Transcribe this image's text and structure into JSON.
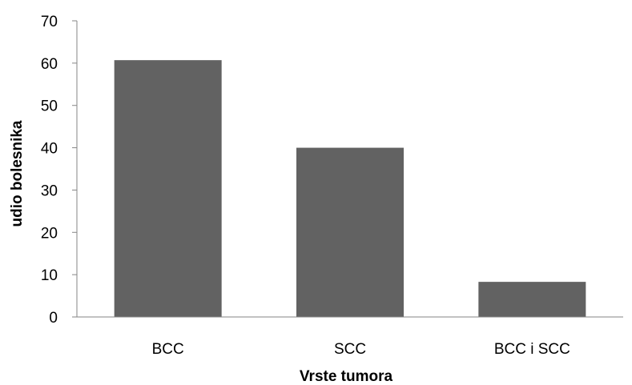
{
  "chart_data": {
    "type": "bar",
    "title": "",
    "xlabel": "Vrste tumora",
    "ylabel": "udio bolesnika",
    "categories": [
      "BCC",
      "SCC",
      "BCC i SCC"
    ],
    "values": [
      60.7,
      40,
      8.3
    ],
    "ylim": [
      0,
      70
    ],
    "yticks": [
      0,
      10,
      20,
      30,
      40,
      50,
      60,
      70
    ],
    "grid": false,
    "legend": "none",
    "bar_color": "#626262",
    "axis_color": "#868686"
  }
}
